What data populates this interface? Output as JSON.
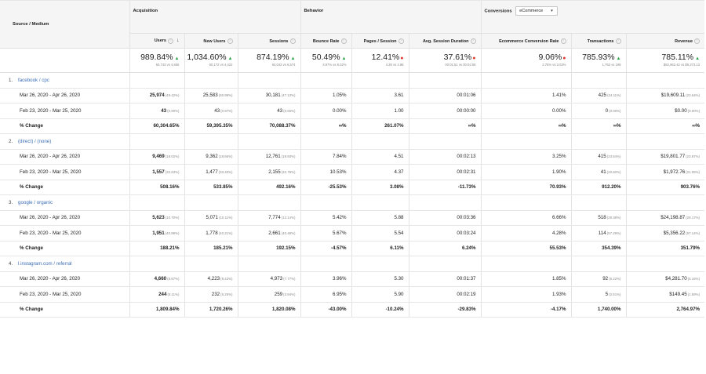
{
  "headers": {
    "source_medium": "Source / Medium",
    "acquisition": "Acquisition",
    "behavior": "Behavior",
    "conversions": "Conversions",
    "conversions_select": "eCommerce",
    "info_icon": "?",
    "sort_arrow": "↓",
    "metrics": [
      "Users",
      "New Users",
      "Sessions",
      "Bounce Rate",
      "Pages / Session",
      "Avg. Session Duration",
      "Ecommerce Conversion Rate",
      "Transactions",
      "Revenue"
    ]
  },
  "totals": [
    {
      "value": "989.84%",
      "compare": "50,743 vs 4,656",
      "trend": "up"
    },
    {
      "value": "1,034.60%",
      "compare": "50,172 vs 4,422",
      "trend": "up"
    },
    {
      "value": "874.19%",
      "compare": "64,043 vs 6,574",
      "trend": "up"
    },
    {
      "value": "50.49%",
      "compare": "3.97% vs 8.02%",
      "trend": "up"
    },
    {
      "value": "12.41%",
      "compare": "4.36 vs 4.98",
      "trend": "down"
    },
    {
      "value": "37.61%",
      "compare": "00:01:51 vs 00:02:58",
      "trend": "down"
    },
    {
      "value": "9.06%",
      "compare": "2.75% vs 3.03%",
      "trend": "down"
    },
    {
      "value": "785.93%",
      "compare": "1,763 vs 199",
      "trend": "up"
    },
    {
      "value": "785.11%",
      "compare": "$82,962.42 vs $9,373.13",
      "trend": "up"
    }
  ],
  "sections": [
    {
      "num": "1.",
      "name": "facebook / cpc",
      "rows": [
        {
          "label": "Mar 26, 2020 - Apr 26, 2020",
          "cells": [
            {
              "v": "25,974",
              "p": "(49.42%)"
            },
            {
              "v": "25,583",
              "p": "(50.99%)"
            },
            {
              "v": "30,181",
              "p": "(47.13%)"
            },
            {
              "v": "1.05%",
              "p": ""
            },
            {
              "v": "3.61",
              "p": ""
            },
            {
              "v": "00:01:06",
              "p": ""
            },
            {
              "v": "1.41%",
              "p": ""
            },
            {
              "v": "425",
              "p": "(24.11%)"
            },
            {
              "v": "$19,609.11",
              "p": "(23.64%)"
            }
          ]
        },
        {
          "label": "Feb 23, 2020 - Mar 25, 2020",
          "cells": [
            {
              "v": "43",
              "p": "(0.90%)"
            },
            {
              "v": "43",
              "p": "(0.97%)"
            },
            {
              "v": "43",
              "p": "(0.65%)"
            },
            {
              "v": "0.00%",
              "p": ""
            },
            {
              "v": "1.00",
              "p": ""
            },
            {
              "v": "00:00:00",
              "p": ""
            },
            {
              "v": "0.00%",
              "p": ""
            },
            {
              "v": "0",
              "p": "(0.00%)"
            },
            {
              "v": "$0.00",
              "p": "(0.00%)"
            }
          ]
        },
        {
          "label": "% Change",
          "cells": [
            {
              "v": "60,304.65%",
              "p": ""
            },
            {
              "v": "59,395.35%",
              "p": ""
            },
            {
              "v": "70,088.37%",
              "p": ""
            },
            {
              "v": "∞%",
              "p": ""
            },
            {
              "v": "261.07%",
              "p": ""
            },
            {
              "v": "∞%",
              "p": ""
            },
            {
              "v": "∞%",
              "p": ""
            },
            {
              "v": "∞%",
              "p": ""
            },
            {
              "v": "∞%",
              "p": ""
            }
          ]
        }
      ]
    },
    {
      "num": "2.",
      "name": "(direct) / (none)",
      "rows": [
        {
          "label": "Mar 26, 2020 - Apr 26, 2020",
          "cells": [
            {
              "v": "9,469",
              "p": "(18.02%)"
            },
            {
              "v": "9,362",
              "p": "(18.66%)"
            },
            {
              "v": "12,761",
              "p": "(19.93%)"
            },
            {
              "v": "7.84%",
              "p": ""
            },
            {
              "v": "4.51",
              "p": ""
            },
            {
              "v": "00:02:13",
              "p": ""
            },
            {
              "v": "3.25%",
              "p": ""
            },
            {
              "v": "415",
              "p": "(23.54%)"
            },
            {
              "v": "$19,801.77",
              "p": "(23.87%)"
            }
          ]
        },
        {
          "label": "Feb 23, 2020 - Mar 25, 2020",
          "cells": [
            {
              "v": "1,557",
              "p": "(32.63%)"
            },
            {
              "v": "1,477",
              "p": "(33.40%)"
            },
            {
              "v": "2,155",
              "p": "(32.78%)"
            },
            {
              "v": "10.53%",
              "p": ""
            },
            {
              "v": "4.37",
              "p": ""
            },
            {
              "v": "00:02:31",
              "p": ""
            },
            {
              "v": "1.90%",
              "p": ""
            },
            {
              "v": "41",
              "p": "(20.60%)"
            },
            {
              "v": "$1,972.76",
              "p": "(21.05%)"
            }
          ]
        },
        {
          "label": "% Change",
          "cells": [
            {
              "v": "508.16%",
              "p": ""
            },
            {
              "v": "533.85%",
              "p": ""
            },
            {
              "v": "492.16%",
              "p": ""
            },
            {
              "v": "-25.53%",
              "p": ""
            },
            {
              "v": "3.08%",
              "p": ""
            },
            {
              "v": "-11.73%",
              "p": ""
            },
            {
              "v": "70.93%",
              "p": ""
            },
            {
              "v": "912.20%",
              "p": ""
            },
            {
              "v": "903.76%",
              "p": ""
            }
          ]
        }
      ]
    },
    {
      "num": "3.",
      "name": "google / organic",
      "rows": [
        {
          "label": "Mar 26, 2020 - Apr 26, 2020",
          "cells": [
            {
              "v": "5,623",
              "p": "(10.70%)"
            },
            {
              "v": "5,071",
              "p": "(10.11%)"
            },
            {
              "v": "7,774",
              "p": "(12.14%)"
            },
            {
              "v": "5.42%",
              "p": ""
            },
            {
              "v": "5.88",
              "p": ""
            },
            {
              "v": "00:03:36",
              "p": ""
            },
            {
              "v": "6.66%",
              "p": ""
            },
            {
              "v": "518",
              "p": "(29.38%)"
            },
            {
              "v": "$24,198.87",
              "p": "(29.17%)"
            }
          ]
        },
        {
          "label": "Feb 23, 2020 - Mar 25, 2020",
          "cells": [
            {
              "v": "1,951",
              "p": "(40.89%)"
            },
            {
              "v": "1,778",
              "p": "(40.21%)"
            },
            {
              "v": "2,661",
              "p": "(40.48%)"
            },
            {
              "v": "5.67%",
              "p": ""
            },
            {
              "v": "5.54",
              "p": ""
            },
            {
              "v": "00:03:24",
              "p": ""
            },
            {
              "v": "4.28%",
              "p": ""
            },
            {
              "v": "114",
              "p": "(57.29%)"
            },
            {
              "v": "$5,356.22",
              "p": "(57.14%)"
            }
          ]
        },
        {
          "label": "% Change",
          "cells": [
            {
              "v": "188.21%",
              "p": ""
            },
            {
              "v": "185.21%",
              "p": ""
            },
            {
              "v": "192.15%",
              "p": ""
            },
            {
              "v": "-4.57%",
              "p": ""
            },
            {
              "v": "6.11%",
              "p": ""
            },
            {
              "v": "6.24%",
              "p": ""
            },
            {
              "v": "55.53%",
              "p": ""
            },
            {
              "v": "354.39%",
              "p": ""
            },
            {
              "v": "351.79%",
              "p": ""
            }
          ]
        }
      ]
    },
    {
      "num": "4.",
      "name": "l.instagram.com / referral",
      "rows": [
        {
          "label": "Mar 26, 2020 - Apr 26, 2020",
          "cells": [
            {
              "v": "4,660",
              "p": "(8.87%)"
            },
            {
              "v": "4,223",
              "p": "(8.42%)"
            },
            {
              "v": "4,973",
              "p": "(7.77%)"
            },
            {
              "v": "3.96%",
              "p": ""
            },
            {
              "v": "5.30",
              "p": ""
            },
            {
              "v": "00:01:37",
              "p": ""
            },
            {
              "v": "1.85%",
              "p": ""
            },
            {
              "v": "92",
              "p": "(5.22%)"
            },
            {
              "v": "$4,281.70",
              "p": "(5.16%)"
            }
          ]
        },
        {
          "label": "Feb 23, 2020 - Mar 25, 2020",
          "cells": [
            {
              "v": "244",
              "p": "(5.11%)"
            },
            {
              "v": "232",
              "p": "(5.25%)"
            },
            {
              "v": "259",
              "p": "(3.94%)"
            },
            {
              "v": "6.95%",
              "p": ""
            },
            {
              "v": "5.90",
              "p": ""
            },
            {
              "v": "00:02:19",
              "p": ""
            },
            {
              "v": "1.93%",
              "p": ""
            },
            {
              "v": "5",
              "p": "(2.51%)"
            },
            {
              "v": "$149.45",
              "p": "(1.59%)"
            }
          ]
        },
        {
          "label": "% Change",
          "cells": [
            {
              "v": "1,809.84%",
              "p": ""
            },
            {
              "v": "1,720.26%",
              "p": ""
            },
            {
              "v": "1,820.08%",
              "p": ""
            },
            {
              "v": "-43.00%",
              "p": ""
            },
            {
              "v": "-10.24%",
              "p": ""
            },
            {
              "v": "-29.83%",
              "p": ""
            },
            {
              "v": "-4.17%",
              "p": ""
            },
            {
              "v": "1,740.00%",
              "p": ""
            },
            {
              "v": "2,764.97%",
              "p": ""
            }
          ]
        }
      ]
    }
  ],
  "colors": {
    "up": "#2aa14a",
    "down": "#e0382f",
    "link": "#3c6fb6"
  }
}
